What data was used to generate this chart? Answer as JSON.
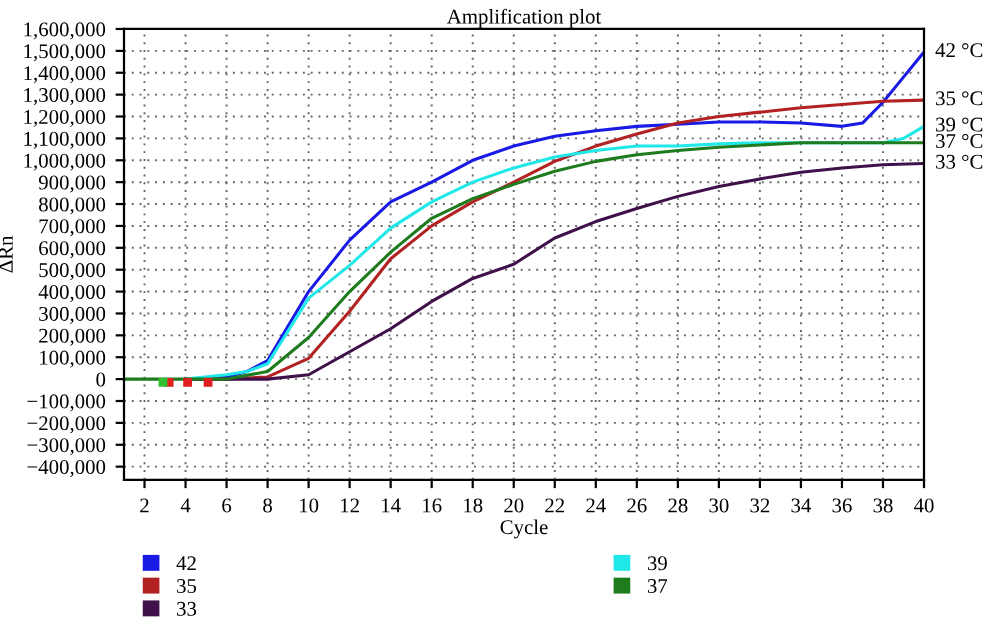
{
  "chart_data": {
    "type": "line",
    "title": "Amplification plot",
    "xlabel": "Cycle",
    "ylabel": "ΔRn",
    "series": [
      {
        "name": "42",
        "color": "#1a1ae6",
        "x": [
          4,
          6,
          7,
          8,
          10,
          12,
          14,
          16,
          18,
          20,
          22,
          24,
          26,
          28,
          30,
          32,
          34,
          36,
          37,
          38,
          39,
          40
        ],
        "values": [
          0,
          10000,
          35000,
          85000,
          400000,
          635000,
          810000,
          900000,
          1000000,
          1065000,
          1110000,
          1135000,
          1155000,
          1165000,
          1175000,
          1175000,
          1170000,
          1155000,
          1170000,
          1265000,
          1380000,
          1495000
        ]
      },
      {
        "name": "35",
        "color": "#b22222",
        "x": [
          4,
          6,
          8,
          10,
          12,
          14,
          16,
          18,
          20,
          22,
          24,
          26,
          28,
          30,
          32,
          34,
          36,
          38,
          40
        ],
        "values": [
          0,
          0,
          10000,
          95000,
          310000,
          550000,
          700000,
          810000,
          900000,
          995000,
          1065000,
          1120000,
          1170000,
          1200000,
          1220000,
          1240000,
          1255000,
          1270000,
          1275000
        ]
      },
      {
        "name": "33",
        "color": "#40104a",
        "x": [
          4,
          6,
          8,
          10,
          12,
          14,
          16,
          18,
          20,
          22,
          24,
          26,
          28,
          30,
          32,
          34,
          36,
          38,
          40
        ],
        "values": [
          0,
          0,
          0,
          20000,
          125000,
          230000,
          355000,
          460000,
          525000,
          645000,
          720000,
          780000,
          835000,
          880000,
          915000,
          945000,
          965000,
          980000,
          985000
        ]
      },
      {
        "name": "39",
        "color": "#20e8e8",
        "x": [
          4,
          6,
          7,
          8,
          10,
          12,
          14,
          16,
          18,
          20,
          22,
          24,
          26,
          28,
          30,
          32,
          34,
          36,
          38,
          39,
          40
        ],
        "values": [
          0,
          20000,
          35000,
          70000,
          370000,
          520000,
          690000,
          810000,
          900000,
          965000,
          1015000,
          1045000,
          1065000,
          1065000,
          1075000,
          1080000,
          1080000,
          1080000,
          1080000,
          1100000,
          1155000
        ]
      },
      {
        "name": "37",
        "color": "#1e7b1e",
        "x": [
          1,
          2,
          4,
          6,
          8,
          10,
          12,
          14,
          16,
          18,
          20,
          22,
          24,
          26,
          28,
          30,
          32,
          34,
          36,
          38,
          40
        ],
        "values": [
          0,
          0,
          0,
          0,
          35000,
          190000,
          400000,
          580000,
          735000,
          825000,
          890000,
          950000,
          995000,
          1025000,
          1045000,
          1060000,
          1070000,
          1080000,
          1080000,
          1080000,
          1080000
        ]
      },
      {
        "type": "scatter",
        "marker": "square",
        "color": "#e02020",
        "x": [
          3.2,
          4.1,
          5.1
        ],
        "values": [
          -15000,
          -15000,
          -15000
        ]
      },
      {
        "type": "scatter",
        "marker": "square",
        "color": "#30c030",
        "x": [
          2.9
        ],
        "values": [
          -15000
        ]
      }
    ],
    "annotations": [
      "42 °C",
      "35 °C",
      "33 °C",
      "39 °C",
      "37 °C"
    ],
    "xlim": [
      1,
      40
    ],
    "xticks": [
      2,
      4,
      6,
      8,
      10,
      12,
      14,
      16,
      18,
      20,
      22,
      24,
      26,
      28,
      30,
      32,
      34,
      36,
      38,
      40
    ],
    "ylim": [
      -460000,
      1600000
    ],
    "yticks": [
      {
        "value": -400000,
        "label": "−400,000"
      },
      {
        "value": -300000,
        "label": "−300,000"
      },
      {
        "value": -200000,
        "label": "−200,000"
      },
      {
        "value": -100000,
        "label": "−100,000"
      },
      0,
      {
        "value": 100000,
        "label": "100,000"
      },
      {
        "value": 200000,
        "label": "200,000"
      },
      {
        "value": 300000,
        "label": "300,000"
      },
      {
        "value": 400000,
        "label": "400,000"
      },
      {
        "value": 500000,
        "label": "500,000"
      },
      {
        "value": 600000,
        "label": "600,000"
      },
      {
        "value": 700000,
        "label": "700,000"
      },
      {
        "value": 800000,
        "label": "800,000"
      },
      {
        "value": 900000,
        "label": "900,000"
      },
      {
        "value": 1000000,
        "label": "1,000,000"
      },
      {
        "value": 1100000,
        "label": "1,100,000"
      },
      {
        "value": 1200000,
        "label": "1,200,000"
      },
      {
        "value": 1300000,
        "label": "1,300,000"
      },
      {
        "value": 1400000,
        "label": "1,400,000"
      },
      {
        "value": 1500000,
        "label": "1,500,000"
      },
      {
        "value": 1600000,
        "label": "1,600,000"
      }
    ],
    "grid": true,
    "legend": "bottom",
    "line_style": "solid"
  }
}
